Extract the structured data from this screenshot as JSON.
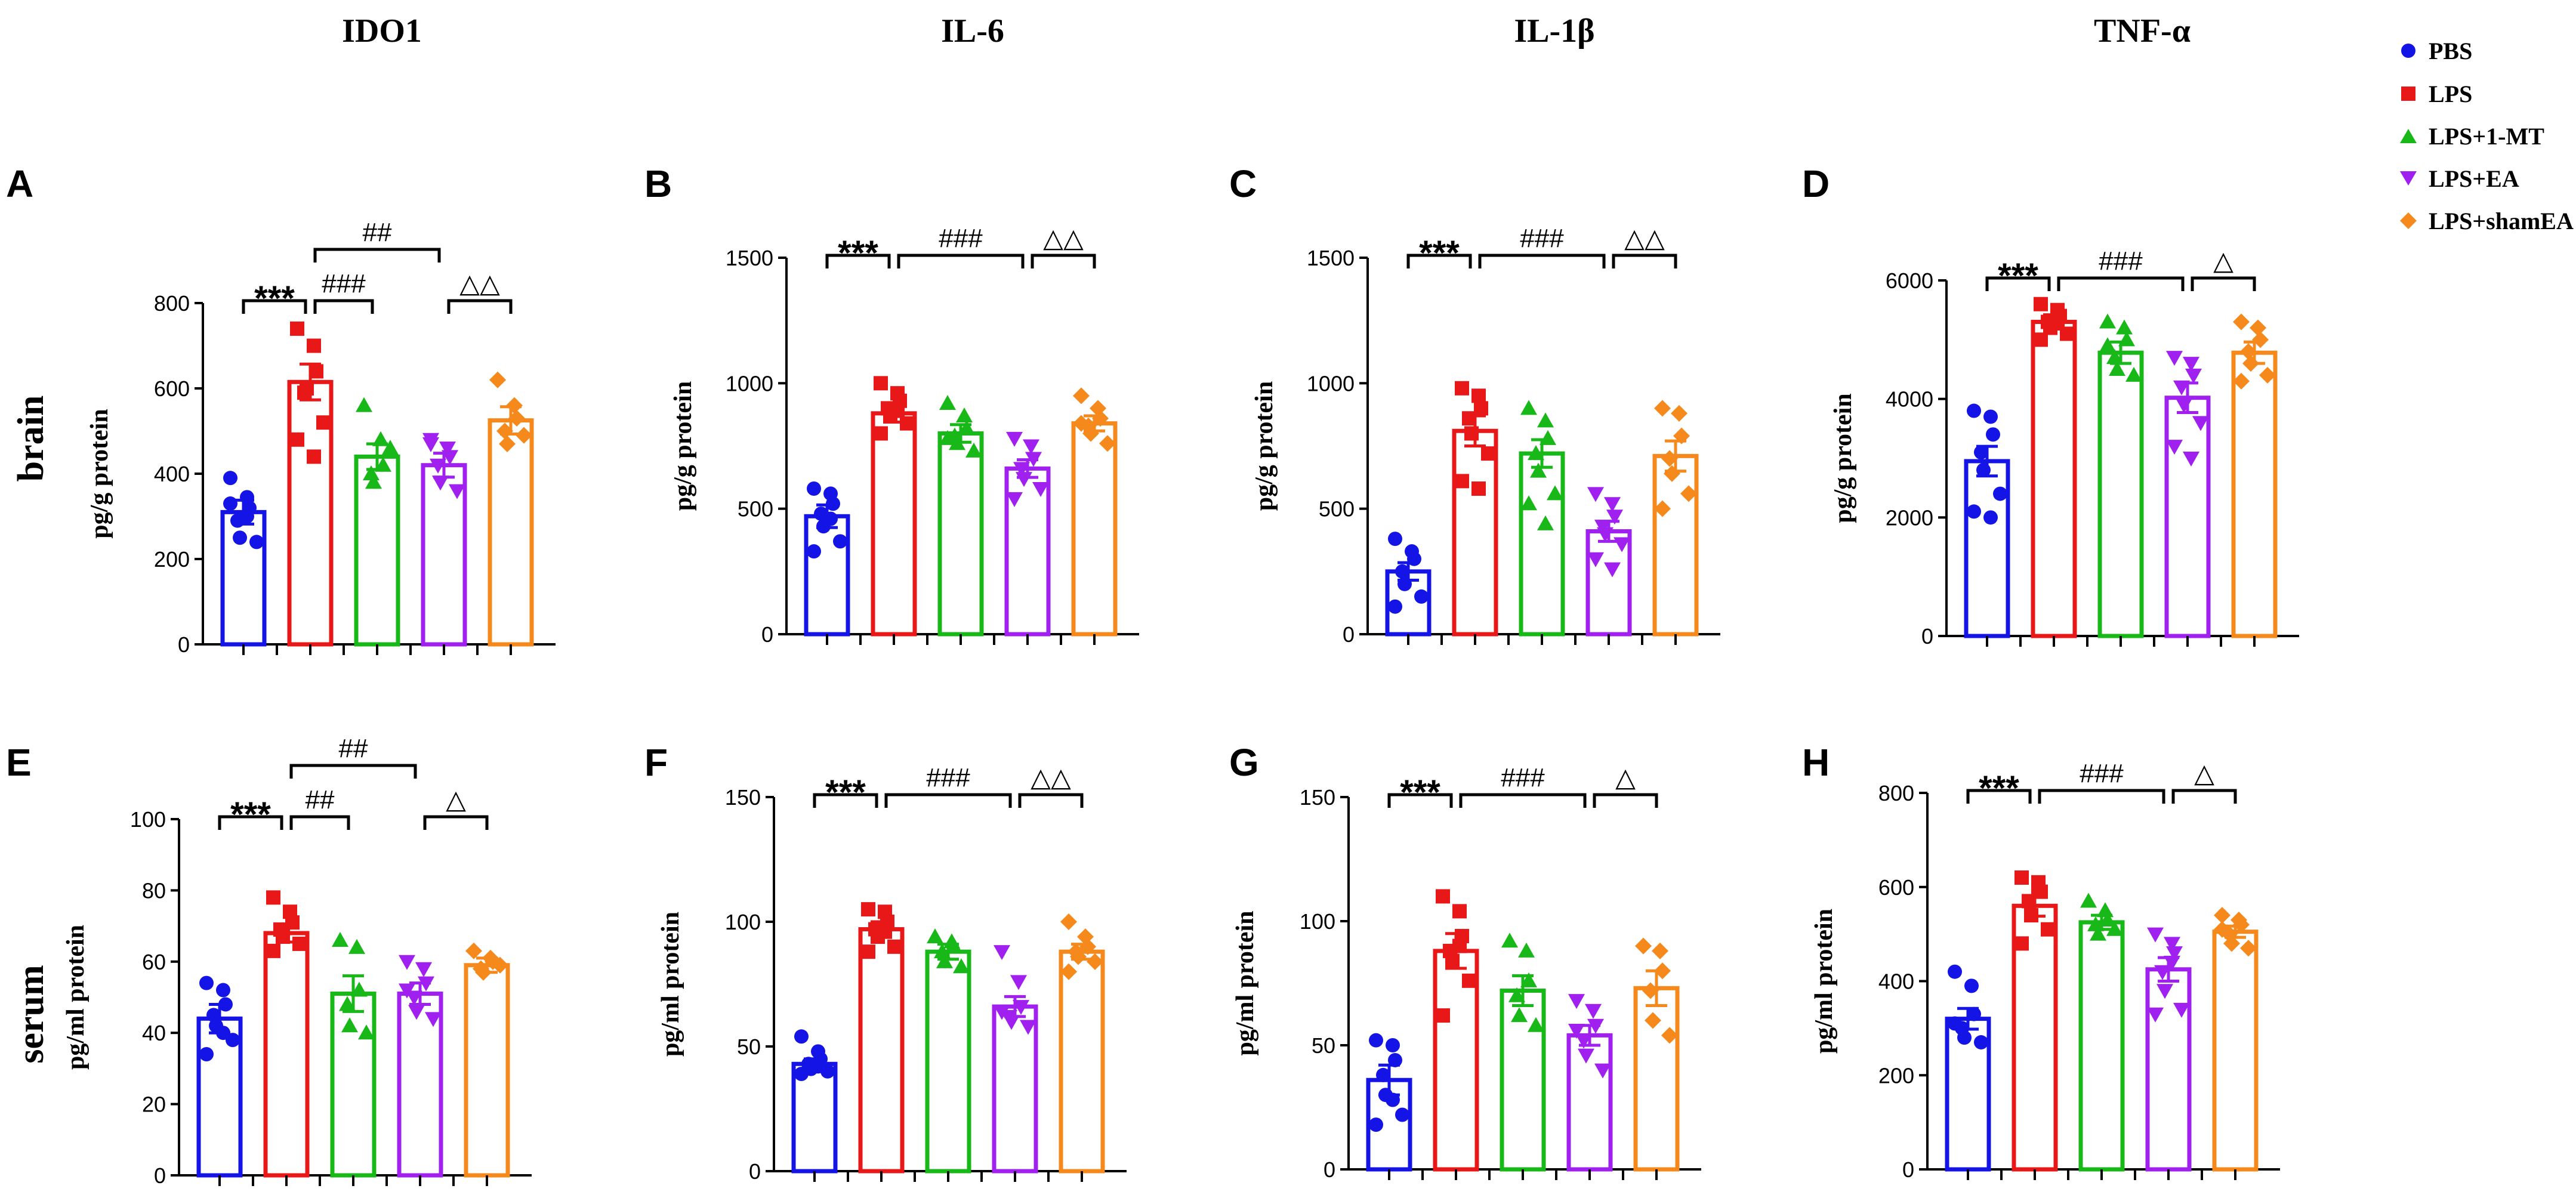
{
  "column_titles": [
    "IDO1",
    "IL-6",
    "IL-1β",
    "TNF-α"
  ],
  "row_labels": [
    "brain",
    "serum"
  ],
  "legend": {
    "entries": [
      {
        "label": "PBS",
        "color": "#1414E6",
        "marker": "circle"
      },
      {
        "label": "LPS",
        "color": "#E81818",
        "marker": "square"
      },
      {
        "label": "LPS+1-MT",
        "color": "#18B818",
        "marker": "triangle-up"
      },
      {
        "label": "LPS+EA",
        "color": "#A020F0",
        "marker": "triangle-down"
      },
      {
        "label": "LPS+shamEA",
        "color": "#F5891C",
        "marker": "diamond"
      }
    ]
  },
  "chart_data": [
    {
      "panel": "A",
      "type": "bar",
      "title": "IDO1",
      "ylabel": "pg/g protein",
      "ylim": [
        0,
        800
      ],
      "yticks": [
        0,
        200,
        400,
        600,
        800
      ],
      "categories": [
        "PBS",
        "LPS",
        "LPS+1-MT",
        "LPS+EA",
        "LPS+shamEA"
      ],
      "values": [
        310,
        615,
        440,
        420,
        525
      ],
      "sem": [
        28,
        42,
        30,
        28,
        32
      ],
      "points": [
        [
          390,
          345,
          320,
          290,
          250,
          240,
          330,
          300
        ],
        [
          740,
          700,
          640,
          590,
          600,
          520,
          480,
          440
        ],
        [
          560,
          480,
          420,
          400,
          380,
          460
        ],
        [
          480,
          460,
          440,
          420,
          380,
          360,
          470
        ],
        [
          620,
          560,
          530,
          500,
          470,
          490
        ]
      ],
      "annotations": [
        {
          "from": 0,
          "to": 1,
          "text": "***",
          "level": 0
        },
        {
          "from": 1,
          "to": 2,
          "text": "###",
          "level": 0
        },
        {
          "from": 1,
          "to": 3,
          "text": "##",
          "level": 1
        },
        {
          "from": 3,
          "to": 4,
          "text": "△△",
          "level": 0
        }
      ]
    },
    {
      "panel": "B",
      "type": "bar",
      "title": "IL-6",
      "ylabel": "pg/g protein",
      "ylim": [
        0,
        1500
      ],
      "yticks": [
        0,
        500,
        1000,
        1500
      ],
      "categories": [
        "PBS",
        "LPS",
        "LPS+1-MT",
        "LPS+EA",
        "LPS+shamEA"
      ],
      "values": [
        470,
        880,
        800,
        660,
        840
      ],
      "sem": [
        45,
        35,
        35,
        35,
        30
      ],
      "points": [
        [
          580,
          560,
          520,
          480,
          430,
          370,
          330,
          460
        ],
        [
          1000,
          960,
          930,
          900,
          870,
          840,
          800,
          890
        ],
        [
          920,
          870,
          820,
          790,
          760,
          730,
          780
        ],
        [
          780,
          750,
          700,
          660,
          620,
          580,
          540
        ],
        [
          950,
          900,
          860,
          830,
          800,
          760,
          840
        ]
      ],
      "annotations": [
        {
          "from": 0,
          "to": 1,
          "text": "***",
          "level": 0
        },
        {
          "from": 1,
          "to": 3,
          "text": "###",
          "level": 0
        },
        {
          "from": 3,
          "to": 4,
          "text": "△△",
          "level": 0
        }
      ]
    },
    {
      "panel": "C",
      "type": "bar",
      "title": "IL-1β",
      "ylabel": "pg/g protein",
      "ylim": [
        0,
        1500
      ],
      "yticks": [
        0,
        500,
        1000,
        1500
      ],
      "categories": [
        "PBS",
        "LPS",
        "LPS+1-MT",
        "LPS+EA",
        "LPS+shamEA"
      ],
      "values": [
        250,
        810,
        720,
        410,
        710
      ],
      "sem": [
        35,
        60,
        55,
        40,
        60
      ],
      "points": [
        [
          380,
          330,
          300,
          250,
          200,
          150,
          110
        ],
        [
          980,
          950,
          900,
          860,
          800,
          720,
          610,
          580
        ],
        [
          900,
          850,
          780,
          720,
          650,
          560,
          520,
          440
        ],
        [
          560,
          520,
          470,
          430,
          400,
          360,
          300,
          260
        ],
        [
          900,
          880,
          790,
          700,
          640,
          560,
          500
        ]
      ],
      "annotations": [
        {
          "from": 0,
          "to": 1,
          "text": "***",
          "level": 0
        },
        {
          "from": 1,
          "to": 3,
          "text": "###",
          "level": 0
        },
        {
          "from": 3,
          "to": 4,
          "text": "△△",
          "level": 0
        }
      ]
    },
    {
      "panel": "D",
      "type": "bar",
      "title": "TNF-α",
      "ylabel": "pg/g protein",
      "ylim": [
        0,
        6000
      ],
      "yticks": [
        0,
        2000,
        4000,
        6000
      ],
      "categories": [
        "PBS",
        "LPS",
        "LPS+1-MT",
        "LPS+EA",
        "LPS+shamEA"
      ],
      "values": [
        2950,
        5300,
        4780,
        4020,
        4780
      ],
      "sem": [
        250,
        120,
        180,
        250,
        180
      ],
      "points": [
        [
          3800,
          3700,
          3400,
          3100,
          2800,
          2400,
          2100,
          2000
        ],
        [
          5600,
          5500,
          5400,
          5300,
          5200,
          5100,
          5000,
          5300
        ],
        [
          5300,
          5200,
          5000,
          4700,
          4500,
          4400,
          4900
        ],
        [
          4700,
          4600,
          4400,
          4200,
          3900,
          3600,
          3200,
          3000
        ],
        [
          5300,
          5200,
          5000,
          4800,
          4600,
          4400,
          4300
        ]
      ],
      "annotations": [
        {
          "from": 0,
          "to": 1,
          "text": "***",
          "level": 0
        },
        {
          "from": 1,
          "to": 3,
          "text": "###",
          "level": 0
        },
        {
          "from": 3,
          "to": 4,
          "text": "△",
          "level": 0
        }
      ]
    },
    {
      "panel": "E",
      "type": "bar",
      "title": "",
      "ylabel": "pg/ml protein",
      "ylim": [
        0,
        100
      ],
      "yticks": [
        0,
        20,
        40,
        60,
        80,
        100
      ],
      "categories": [
        "PBS",
        "LPS",
        "LPS+1-MT",
        "LPS+EA",
        "LPS+shamEA"
      ],
      "values": [
        44,
        68,
        51,
        51,
        59
      ],
      "sem": [
        4,
        2.5,
        5,
        3,
        2
      ],
      "points": [
        [
          54,
          52,
          48,
          45,
          42,
          38,
          34,
          40
        ],
        [
          78,
          74,
          71,
          69,
          67,
          65,
          63
        ],
        [
          66,
          64,
          52,
          48,
          42,
          40
        ],
        [
          60,
          58,
          54,
          50,
          46,
          44,
          52
        ],
        [
          63,
          61,
          60,
          58,
          57,
          59
        ]
      ],
      "annotations": [
        {
          "from": 0,
          "to": 1,
          "text": "***",
          "level": 0
        },
        {
          "from": 1,
          "to": 2,
          "text": "##",
          "level": 0
        },
        {
          "from": 1,
          "to": 3,
          "text": "##",
          "level": 1
        },
        {
          "from": 3,
          "to": 4,
          "text": "△",
          "level": 0
        }
      ]
    },
    {
      "panel": "F",
      "type": "bar",
      "title": "",
      "ylabel": "pg/ml protein",
      "ylim": [
        0,
        150
      ],
      "yticks": [
        0,
        50,
        100,
        150
      ],
      "categories": [
        "PBS",
        "LPS",
        "LPS+1-MT",
        "LPS+EA",
        "LPS+shamEA"
      ],
      "values": [
        43,
        97,
        88,
        66,
        88
      ],
      "sem": [
        2,
        3,
        3,
        4,
        3
      ],
      "points": [
        [
          54,
          48,
          45,
          43,
          41,
          40,
          39,
          42
        ],
        [
          105,
          104,
          100,
          97,
          94,
          90,
          88,
          96
        ],
        [
          94,
          92,
          90,
          88,
          84,
          82
        ],
        [
          88,
          76,
          66,
          62,
          60,
          58,
          64
        ],
        [
          100,
          94,
          90,
          88,
          86,
          84,
          80
        ]
      ],
      "annotations": [
        {
          "from": 0,
          "to": 1,
          "text": "***",
          "level": 0
        },
        {
          "from": 1,
          "to": 3,
          "text": "###",
          "level": 0
        },
        {
          "from": 3,
          "to": 4,
          "text": "△△",
          "level": 0
        }
      ]
    },
    {
      "panel": "G",
      "type": "bar",
      "title": "",
      "ylabel": "pg/ml protein",
      "ylim": [
        0,
        150
      ],
      "yticks": [
        0,
        50,
        100,
        150
      ],
      "categories": [
        "PBS",
        "LPS",
        "LPS+1-MT",
        "LPS+EA",
        "LPS+shamEA"
      ],
      "values": [
        36,
        88,
        72,
        54,
        73
      ],
      "sem": [
        6,
        7,
        6,
        4,
        7
      ],
      "points": [
        [
          52,
          50,
          44,
          38,
          30,
          22,
          18,
          28
        ],
        [
          110,
          104,
          94,
          88,
          84,
          76,
          62,
          90
        ],
        [
          92,
          88,
          76,
          70,
          62,
          58
        ],
        [
          68,
          64,
          58,
          52,
          46,
          40,
          56
        ],
        [
          90,
          88,
          80,
          72,
          60,
          54
        ]
      ],
      "annotations": [
        {
          "from": 0,
          "to": 1,
          "text": "***",
          "level": 0
        },
        {
          "from": 1,
          "to": 3,
          "text": "###",
          "level": 0
        },
        {
          "from": 3,
          "to": 4,
          "text": "△",
          "level": 0
        }
      ]
    },
    {
      "panel": "H",
      "type": "bar",
      "title": "",
      "ylabel": "pg/ml protein",
      "ylim": [
        0,
        800
      ],
      "yticks": [
        0,
        200,
        400,
        600,
        800
      ],
      "categories": [
        "PBS",
        "LPS",
        "LPS+1-MT",
        "LPS+EA",
        "LPS+shamEA"
      ],
      "values": [
        320,
        560,
        525,
        425,
        505
      ],
      "sem": [
        22,
        22,
        15,
        25,
        12
      ],
      "points": [
        [
          420,
          390,
          330,
          300,
          280,
          270,
          310
        ],
        [
          620,
          610,
          590,
          570,
          540,
          510,
          480,
          600
        ],
        [
          570,
          550,
          530,
          520,
          500,
          510
        ],
        [
          500,
          480,
          460,
          420,
          380,
          340,
          330,
          440
        ],
        [
          540,
          530,
          520,
          500,
          480,
          470,
          510
        ]
      ],
      "annotations": [
        {
          "from": 0,
          "to": 1,
          "text": "***",
          "level": 0
        },
        {
          "from": 1,
          "to": 3,
          "text": "###",
          "level": 0
        },
        {
          "from": 3,
          "to": 4,
          "text": "△",
          "level": 0
        }
      ]
    }
  ]
}
